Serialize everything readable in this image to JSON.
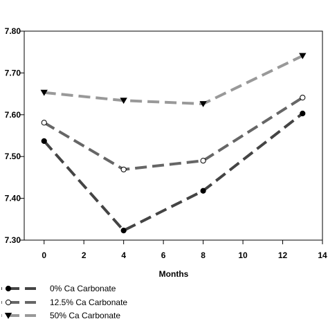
{
  "chart_data": {
    "type": "line",
    "xlabel": "Months",
    "ylabel": "",
    "xlim": [
      -1,
      14
    ],
    "ylim": [
      7.3,
      7.8
    ],
    "x_ticks": [
      0,
      2,
      4,
      6,
      8,
      10,
      12,
      14
    ],
    "x_tick_labels": [
      "0",
      "2",
      "4",
      "6",
      "8",
      "10",
      "12",
      "14"
    ],
    "y_ticks": [
      7.3,
      7.4,
      7.5,
      7.6,
      7.7,
      7.8
    ],
    "y_tick_labels": [
      "7.30",
      "7.40",
      "7.50",
      "7.60",
      "7.70",
      "7.80"
    ],
    "grid": false,
    "legend_position": "bottom-left",
    "series": [
      {
        "name": "0% Ca Carbonate",
        "marker": "filled-circle",
        "color": "#444444",
        "x": [
          0,
          4,
          8,
          13
        ],
        "values": [
          7.537,
          7.323,
          7.418,
          7.603
        ]
      },
      {
        "name": "12.5% Ca Carbonate",
        "marker": "open-circle",
        "color": "#666666",
        "x": [
          0,
          4,
          8,
          13
        ],
        "values": [
          7.581,
          7.469,
          7.49,
          7.641
        ]
      },
      {
        "name": "50% Ca Carbonate",
        "marker": "filled-triangle-down",
        "color": "#999999",
        "x": [
          0,
          4,
          8,
          13
        ],
        "values": [
          7.653,
          7.634,
          7.626,
          7.741
        ]
      }
    ]
  }
}
